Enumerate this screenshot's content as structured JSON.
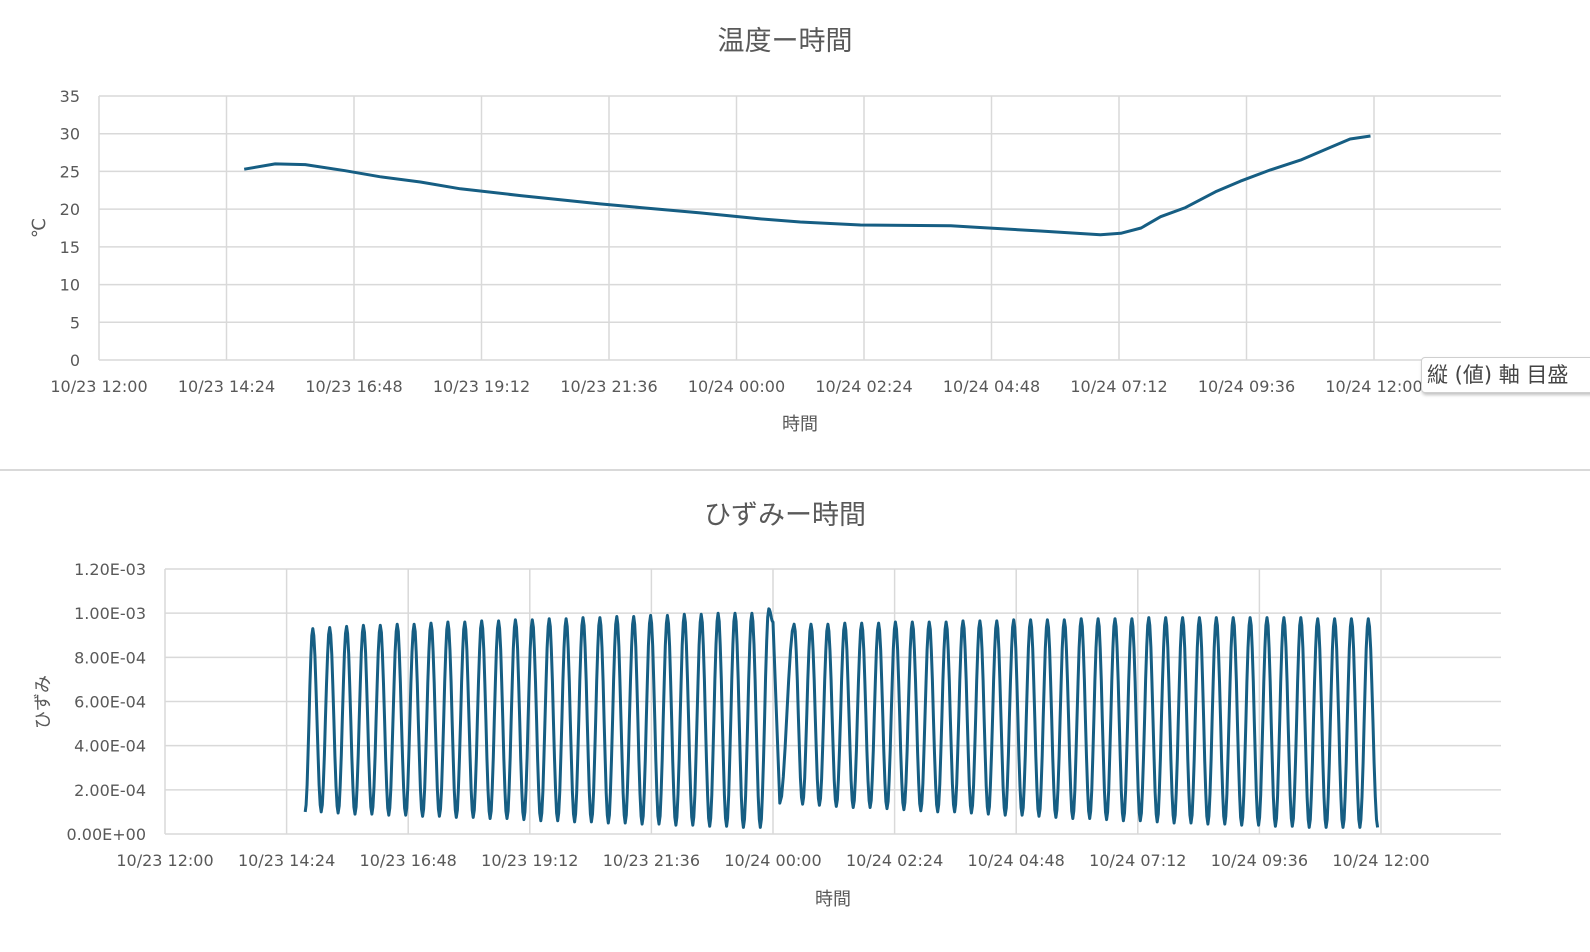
{
  "chart_data": [
    {
      "type": "line",
      "title": "温度ー時間",
      "xlabel": "時間",
      "ylabel": "℃",
      "ylim": [
        0,
        35
      ],
      "yticks": [
        "0",
        "5",
        "10",
        "15",
        "20",
        "25",
        "30",
        "35"
      ],
      "xlim": [
        "10/23 12:00",
        "10/24 12:00"
      ],
      "xticks": [
        "10/23 12:00",
        "10/23 14:24",
        "10/23 16:48",
        "10/23 19:12",
        "10/23 21:36",
        "10/24 00:00",
        "10/24 02:24",
        "10/24 04:48",
        "10/24 07:12",
        "10/24 09:36",
        "10/24 12:00"
      ],
      "grid": true,
      "color": "#165e83",
      "points": [
        [
          "10/23 14:44",
          25.3
        ],
        [
          "10/23 15:19",
          26.0
        ],
        [
          "10/23 15:53",
          25.9
        ],
        [
          "10/23 16:38",
          25.1
        ],
        [
          "10/23 17:17",
          24.3
        ],
        [
          "10/23 18:03",
          23.6
        ],
        [
          "10/23 18:48",
          22.7
        ],
        [
          "10/23 19:56",
          21.8
        ],
        [
          "10/23 21:26",
          20.7
        ],
        [
          "10/23 22:12",
          20.2
        ],
        [
          "10/23 23:19",
          19.5
        ],
        [
          "10/24 00:27",
          18.7
        ],
        [
          "10/24 01:12",
          18.3
        ],
        [
          "10/24 02:20",
          17.9
        ],
        [
          "10/24 04:02",
          17.8
        ],
        [
          "10/24 04:30",
          17.6
        ],
        [
          "10/24 05:43",
          17.1
        ],
        [
          "10/24 06:51",
          16.6
        ],
        [
          "10/24 07:14",
          16.8
        ],
        [
          "10/24 07:37",
          17.5
        ],
        [
          "10/24 07:59",
          19.0
        ],
        [
          "10/24 08:27",
          20.2
        ],
        [
          "10/24 09:01",
          22.3
        ],
        [
          "10/24 09:29",
          23.7
        ],
        [
          "10/24 10:03",
          25.2
        ],
        [
          "10/24 10:37",
          26.5
        ],
        [
          "10/24 11:11",
          28.2
        ],
        [
          "10/24 11:33",
          29.3
        ],
        [
          "10/24 11:56",
          29.7
        ]
      ]
    },
    {
      "type": "line",
      "title": "ひずみー時間",
      "xlabel": "時間",
      "ylabel": "ひずみ",
      "ylim": [
        0,
        0.0012
      ],
      "yticks": [
        "0.00E+00",
        "2.00E-04",
        "4.00E-04",
        "6.00E-04",
        "8.00E-04",
        "1.00E-03",
        "1.20E-03"
      ],
      "xlim": [
        "10/23 12:00",
        "10/24 12:00"
      ],
      "xticks": [
        "10/23 12:00",
        "10/23 14:24",
        "10/23 16:48",
        "10/23 19:12",
        "10/23 21:36",
        "10/24 00:00",
        "10/24 02:24",
        "10/24 04:48",
        "10/24 07:12",
        "10/24 09:36",
        "10/24 12:00"
      ],
      "grid": true,
      "color": "#165e83",
      "segments": [
        {
          "start": [
            "10/23 14:46",
            0.0001
          ],
          "peaks_first": "10/23 14:55",
          "interval_min": 20,
          "peaks": [
            0.00093,
            0.000935,
            0.00094,
            0.000945,
            0.000945,
            0.00095,
            0.00095,
            0.000955,
            0.00096,
            0.00096,
            0.000965,
            0.000965,
            0.00097,
            0.00097,
            0.000975,
            0.000975,
            0.00098,
            0.00098,
            0.000985,
            0.000985,
            0.00099,
            0.00099,
            0.000995,
            0.000995,
            0.001,
            0.001,
            0.001,
            0.00102
          ],
          "troughs": [
            0.0001,
            9.5e-05,
            9e-05,
            9e-05,
            8.5e-05,
            8.5e-05,
            8e-05,
            8e-05,
            7.5e-05,
            7.5e-05,
            7e-05,
            7e-05,
            6.5e-05,
            6e-05,
            6e-05,
            5.5e-05,
            5.5e-05,
            5e-05,
            5e-05,
            4.5e-05,
            4.5e-05,
            4e-05,
            4e-05,
            3.5e-05,
            3.5e-05,
            3e-05,
            3e-05
          ],
          "end": [
            "10/24 00:00",
            0.00096
          ]
        },
        {
          "start": [
            "10/24 00:08",
            0.00014
          ],
          "peaks_first": "10/24 00:25",
          "interval_min": 20,
          "peaks": [
            0.00095,
            0.00095,
            0.00095,
            0.000955,
            0.000955,
            0.000955,
            0.00096,
            0.00096,
            0.00096,
            0.00096,
            0.000965,
            0.000965,
            0.000965,
            0.00097,
            0.00097,
            0.00097,
            0.00097,
            0.000975,
            0.000975,
            0.000975,
            0.000975,
            0.00098,
            0.00098,
            0.00098,
            0.00098,
            0.00098,
            0.00098,
            0.00098,
            0.00098,
            0.00098,
            0.00098,
            0.000975,
            0.000975,
            0.000975,
            0.000975
          ],
          "troughs": [
            0.000135,
            0.00013,
            0.000125,
            0.00012,
            0.00012,
            0.000115,
            0.00011,
            0.000105,
            0.0001,
            0.0001,
            9.5e-05,
            9e-05,
            8.5e-05,
            8.5e-05,
            8e-05,
            7.5e-05,
            7e-05,
            7e-05,
            6.5e-05,
            6e-05,
            6e-05,
            5.5e-05,
            5e-05,
            5e-05,
            4.5e-05,
            4.5e-05,
            4e-05,
            4e-05,
            3.5e-05,
            3.5e-05,
            3e-05,
            3e-05,
            3e-05,
            3e-05
          ],
          "end": [
            "10/24 11:56",
            3e-05
          ]
        }
      ]
    }
  ],
  "tooltip": {
    "text": "縦 (値) 軸 目盛"
  }
}
